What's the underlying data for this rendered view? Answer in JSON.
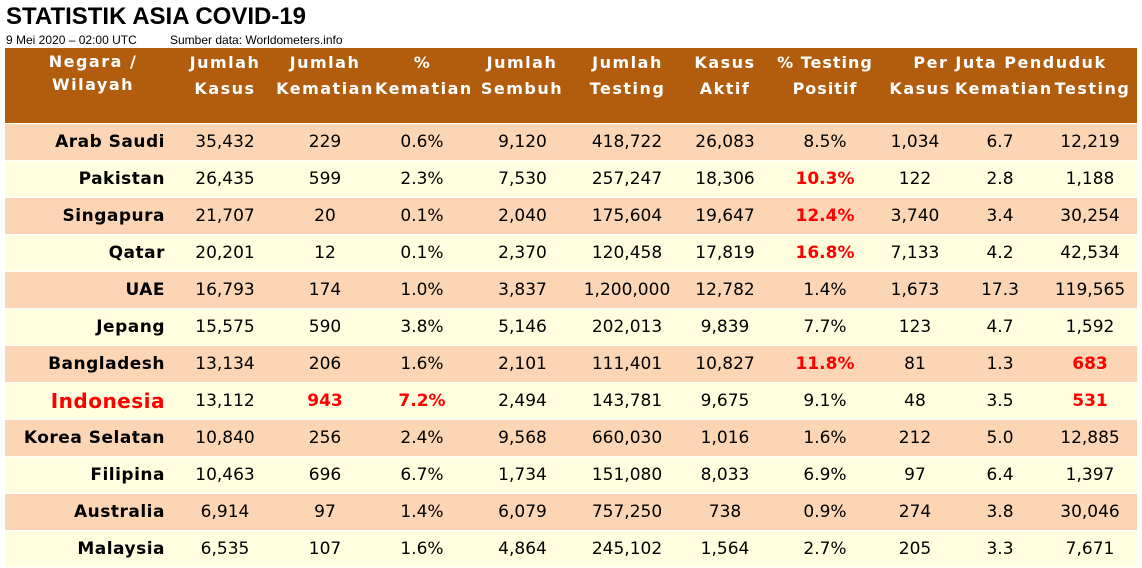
{
  "title": "STATISTIK ASIA COVID-19",
  "date_text": "9 Mei 2020 – 02:00 UTC",
  "source_text": "Sumber data: Worldometers.info",
  "colors": {
    "header_bg": "#b25c0e",
    "row_odd": "#fcd5b5",
    "row_even": "#ffffe0",
    "highlight": "#ff0000"
  },
  "headers": {
    "country": [
      "Negara /",
      "Wilayah"
    ],
    "cases": [
      "Jumlah",
      "Kasus"
    ],
    "deaths": [
      "Jumlah",
      "Kematian"
    ],
    "death_pct": [
      "%",
      "Kematian"
    ],
    "recovered": [
      "Jumlah",
      "Sembuh"
    ],
    "tests": [
      "Jumlah",
      "Testing"
    ],
    "active": [
      "Kasus",
      "Aktif"
    ],
    "pos_rate": [
      "% Testing",
      "Positif"
    ],
    "per_million": "Per Juta Penduduk",
    "pm_cases": "Kasus",
    "pm_deaths": "Kematian",
    "pm_tests": "Testing"
  },
  "rows": [
    {
      "country": "Arab Saudi",
      "cases": "35,432",
      "deaths": "229",
      "death_pct": "0.6%",
      "recovered": "9,120",
      "tests": "418,722",
      "active": "26,083",
      "pos_rate": "8.5%",
      "pm_cases": "1,034",
      "pm_deaths": "6.7",
      "pm_tests": "12,219"
    },
    {
      "country": "Pakistan",
      "cases": "26,435",
      "deaths": "599",
      "death_pct": "2.3%",
      "recovered": "7,530",
      "tests": "257,247",
      "active": "18,306",
      "pos_rate": "10.3%",
      "pm_cases": "122",
      "pm_deaths": "2.8",
      "pm_tests": "1,188"
    },
    {
      "country": "Singapura",
      "cases": "21,707",
      "deaths": "20",
      "death_pct": "0.1%",
      "recovered": "2,040",
      "tests": "175,604",
      "active": "19,647",
      "pos_rate": "12.4%",
      "pm_cases": "3,740",
      "pm_deaths": "3.4",
      "pm_tests": "30,254"
    },
    {
      "country": "Qatar",
      "cases": "20,201",
      "deaths": "12",
      "death_pct": "0.1%",
      "recovered": "2,370",
      "tests": "120,458",
      "active": "17,819",
      "pos_rate": "16.8%",
      "pm_cases": "7,133",
      "pm_deaths": "4.2",
      "pm_tests": "42,534"
    },
    {
      "country": "UAE",
      "cases": "16,793",
      "deaths": "174",
      "death_pct": "1.0%",
      "recovered": "3,837",
      "tests": "1,200,000",
      "active": "12,782",
      "pos_rate": "1.4%",
      "pm_cases": "1,673",
      "pm_deaths": "17.3",
      "pm_tests": "119,565"
    },
    {
      "country": "Jepang",
      "cases": "15,575",
      "deaths": "590",
      "death_pct": "3.8%",
      "recovered": "5,146",
      "tests": "202,013",
      "active": "9,839",
      "pos_rate": "7.7%",
      "pm_cases": "123",
      "pm_deaths": "4.7",
      "pm_tests": "1,592"
    },
    {
      "country": "Bangladesh",
      "cases": "13,134",
      "deaths": "206",
      "death_pct": "1.6%",
      "recovered": "2,101",
      "tests": "111,401",
      "active": "10,827",
      "pos_rate": "11.8%",
      "pm_cases": "81",
      "pm_deaths": "1.3",
      "pm_tests": "683"
    },
    {
      "country": "Indonesia",
      "cases": "13,112",
      "deaths": "943",
      "death_pct": "7.2%",
      "recovered": "2,494",
      "tests": "143,781",
      "active": "9,675",
      "pos_rate": "9.1%",
      "pm_cases": "48",
      "pm_deaths": "3.5",
      "pm_tests": "531"
    },
    {
      "country": "Korea Selatan",
      "cases": "10,840",
      "deaths": "256",
      "death_pct": "2.4%",
      "recovered": "9,568",
      "tests": "660,030",
      "active": "1,016",
      "pos_rate": "1.6%",
      "pm_cases": "212",
      "pm_deaths": "5.0",
      "pm_tests": "12,885"
    },
    {
      "country": "Filipina",
      "cases": "10,463",
      "deaths": "696",
      "death_pct": "6.7%",
      "recovered": "1,734",
      "tests": "151,080",
      "active": "8,033",
      "pos_rate": "6.9%",
      "pm_cases": "97",
      "pm_deaths": "6.4",
      "pm_tests": "1,397"
    },
    {
      "country": "Australia",
      "cases": "6,914",
      "deaths": "97",
      "death_pct": "1.4%",
      "recovered": "6,079",
      "tests": "757,250",
      "active": "738",
      "pos_rate": "0.9%",
      "pm_cases": "274",
      "pm_deaths": "3.8",
      "pm_tests": "30,046"
    },
    {
      "country": "Malaysia",
      "cases": "6,535",
      "deaths": "107",
      "death_pct": "1.6%",
      "recovered": "4,864",
      "tests": "245,102",
      "active": "1,564",
      "pos_rate": "2.7%",
      "pm_cases": "205",
      "pm_deaths": "3.3",
      "pm_tests": "7,671"
    }
  ],
  "highlights": [
    {
      "row": 1,
      "col": "pos_rate"
    },
    {
      "row": 2,
      "col": "pos_rate"
    },
    {
      "row": 3,
      "col": "pos_rate"
    },
    {
      "row": 6,
      "col": "pos_rate"
    },
    {
      "row": 6,
      "col": "pm_tests"
    },
    {
      "row": 7,
      "col": "country"
    },
    {
      "row": 7,
      "col": "deaths"
    },
    {
      "row": 7,
      "col": "death_pct"
    },
    {
      "row": 7,
      "col": "pm_tests"
    }
  ]
}
